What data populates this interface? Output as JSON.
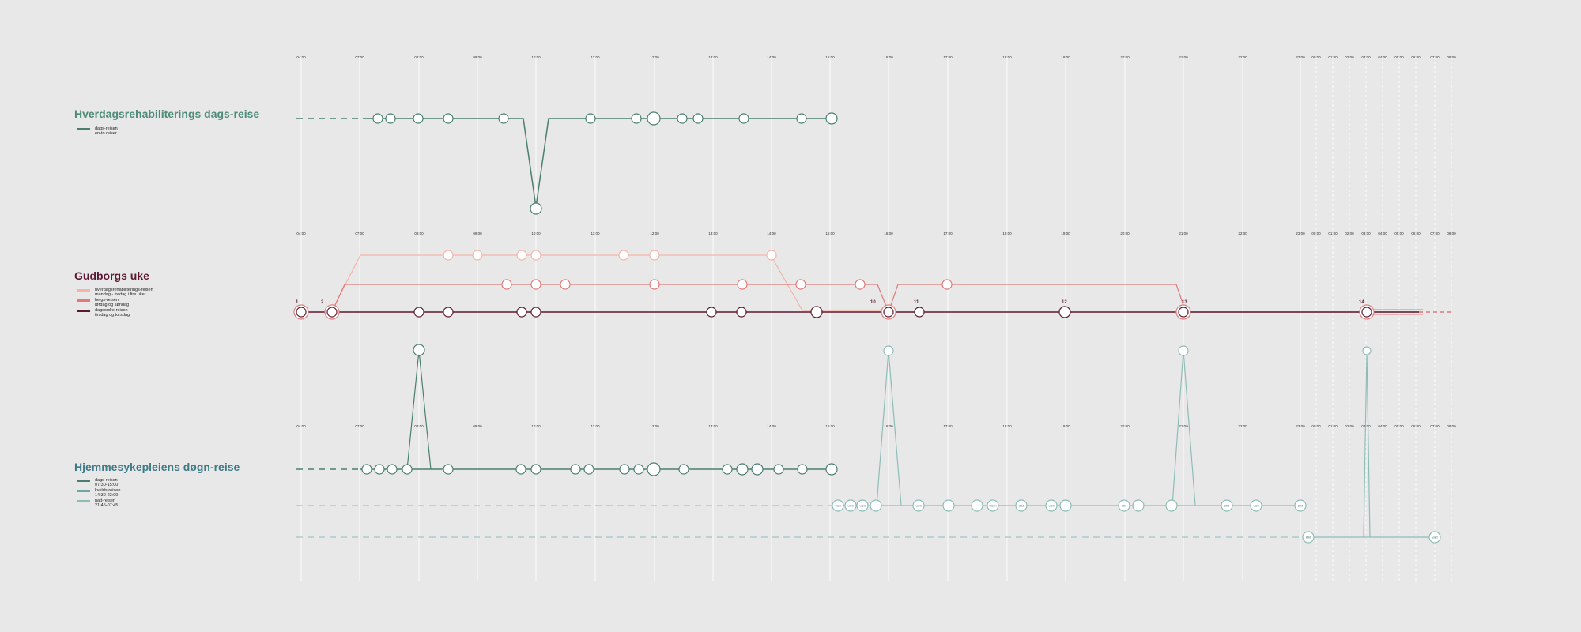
{
  "colors": {
    "background": "#e8e8e9",
    "green_dark": "#4a7f6f",
    "green_light": "#8fbdb6",
    "pink_light": "#f3b5a9",
    "pink_mid": "#de7b79",
    "maroon": "#5b1830",
    "section_green": "#4e8b78",
    "section_maroon": "#5b1830"
  },
  "time_labels": [
    "04:00",
    "07:00",
    "08:00",
    "09:00",
    "10:00",
    "11:00",
    "12:00",
    "13:00",
    "14:00",
    "15:00",
    "16:00",
    "17:00",
    "18:00",
    "19:00",
    "20:00",
    "21:00",
    "22:00",
    "23:00",
    "00:00",
    "01:00",
    "02:00",
    "03:00",
    "04:00",
    "05:00",
    "06:00",
    "07:00",
    "08:00"
  ],
  "sections": {
    "hverdags": {
      "title": "Hverdagsrehabiliterings dags-reise",
      "legend": [
        {
          "label": "dags-reisen",
          "sublabel": "en-to reiser"
        }
      ]
    },
    "gudborg": {
      "title": "Gudborgs uke",
      "legend": [
        {
          "label": "hverdagsrehabiliterings-reisen",
          "sublabel": "mandag - fredag i fire uker"
        },
        {
          "label": "helgs-reisen",
          "sublabel": "lørdag og søndag"
        },
        {
          "label": "dagsordre-reisen",
          "sublabel": "tirsdag og torsdag"
        }
      ],
      "labels": {
        "n1": "1.",
        "n2": "2.",
        "n10": "10.",
        "n11": "11.",
        "n12": "12.",
        "n13": "13.",
        "n14": "14."
      }
    },
    "hjemmesyke": {
      "title": "Hjemmesykepleiens døgn-reise",
      "legend": [
        {
          "label": "dags-reisen",
          "sublabel": "07:30-15:00"
        },
        {
          "label": "kvelds-reisen",
          "sublabel": "14:30-22:00"
        },
        {
          "label": "natt-reisen",
          "sublabel": "21:45-07:45"
        }
      ],
      "circle_labels": {
        "b1": "vakt",
        "b2": "vakt",
        "b3": "vakt",
        "b4": "vakt",
        "b5": "tilsyn",
        "b6": "Økt",
        "b7": "vakt",
        "b8": "Økt",
        "b9": "Økt",
        "b10": "vakt",
        "n1": "Økt",
        "n2": "Økt",
        "n3": "vakt"
      }
    }
  }
}
